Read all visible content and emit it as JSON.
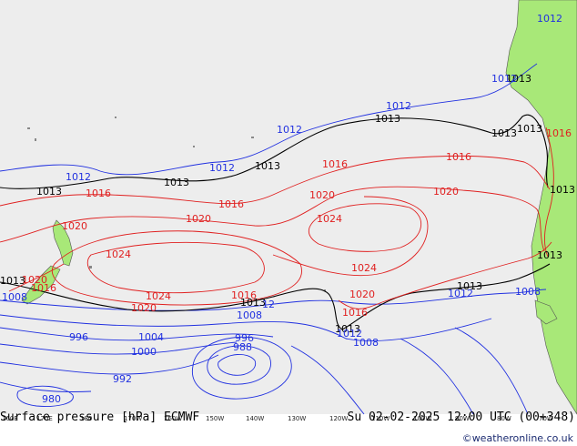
{
  "title": "Surface pressure [hPa] ECMWF",
  "valid_time": "Su 02-02-2025 12:00 UTC (00+348)",
  "credit": "©weatheronline.co.uk",
  "colors": {
    "ocean": "#ededed",
    "land": "#a8e878",
    "isobar_low": "#2030e0",
    "isobar_mid": "#000000",
    "isobar_high": "#e02020"
  },
  "lon_ticks": [
    "160E",
    "170E",
    "180",
    "170W",
    "160W",
    "150W",
    "140W",
    "130W",
    "120W",
    "110W",
    "100W",
    "90W",
    "80W",
    "70W"
  ],
  "isobar_labels": {
    "black": [
      "1013",
      "1013",
      "1013",
      "1013",
      "1013",
      "1013",
      "1013",
      "1013",
      "1013",
      "1013",
      "1013",
      "1013",
      "1013"
    ],
    "red": [
      "1016",
      "1016",
      "1016",
      "1016",
      "1016",
      "1016",
      "1016",
      "1016",
      "1020",
      "1020",
      "1020",
      "1020",
      "1020",
      "1020",
      "1020",
      "1024",
      "1024",
      "1024",
      "1024"
    ],
    "blue": [
      "1012",
      "1012",
      "1012",
      "1012",
      "1012",
      "1012",
      "1012",
      "1012",
      "1008",
      "1008",
      "1008",
      "1008",
      "1004",
      "1000",
      "996",
      "996",
      "992",
      "988",
      "980",
      "12"
    ]
  }
}
